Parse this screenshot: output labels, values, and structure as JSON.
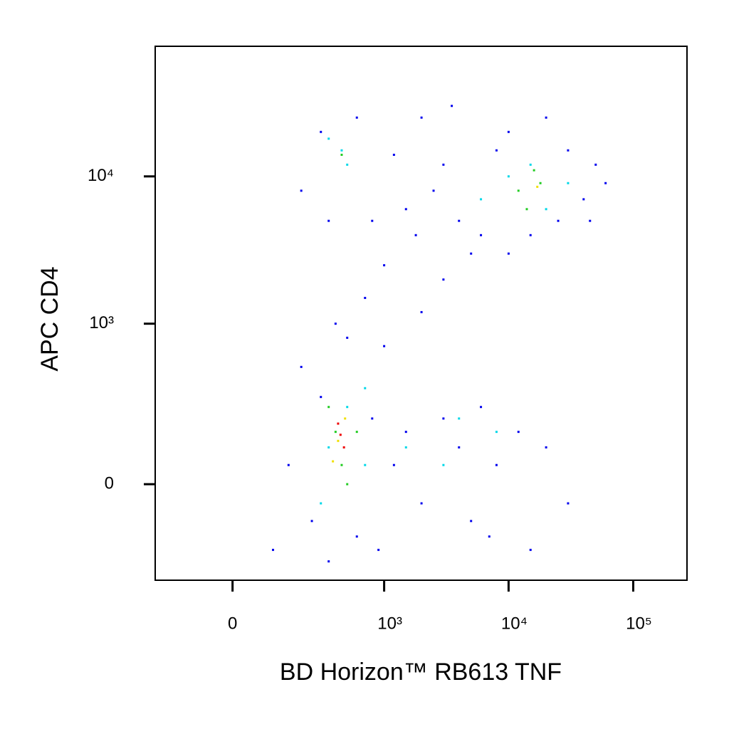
{
  "chart_data": {
    "type": "scatter",
    "xlabel": "BD Horizon™ RB613 TNF",
    "ylabel": "APC CD4",
    "xscale": "biexponential",
    "yscale": "biexponential",
    "xlim": [
      -240,
      270000
    ],
    "ylim": [
      -350,
      76000
    ],
    "xticks": [
      0,
      {
        "value": 1000,
        "label": "10³"
      },
      {
        "value": 10000,
        "label": "10⁴"
      },
      {
        "value": 100000,
        "label": "10⁵"
      }
    ],
    "yticks": [
      0,
      {
        "value": 1000,
        "label": "10³"
      },
      {
        "value": 10000,
        "label": "10⁴"
      }
    ],
    "series": [
      {
        "color": "#0000ee",
        "x": [
          150,
          250,
          300,
          600,
          800,
          1200,
          1500,
          2000,
          3000,
          4000,
          5000,
          6000,
          8000,
          12000,
          20000,
          30000,
          200,
          500,
          700,
          1000,
          2000,
          3000,
          5000,
          800,
          1500,
          2500,
          4000,
          6000,
          10000,
          15000,
          25000,
          40000,
          50000,
          30000,
          8000,
          3000,
          1200,
          300,
          200,
          600,
          2000,
          10000,
          45000,
          100,
          350,
          900,
          7000,
          15000,
          400,
          1000,
          60000,
          20000,
          350,
          3500,
          1800
        ],
        "values": [
          50,
          -100,
          300,
          -150,
          200,
          50,
          150,
          -50,
          200,
          100,
          -100,
          250,
          50,
          150,
          100,
          -50,
          500,
          800,
          1500,
          2500,
          1200,
          2000,
          3000,
          5000,
          6000,
          8000,
          5000,
          4000,
          3000,
          4000,
          5000,
          7000,
          12000,
          15000,
          15000,
          12000,
          14000,
          20000,
          8000,
          25000,
          25000,
          20000,
          5000,
          -200,
          -250,
          -200,
          -150,
          -200,
          1000,
          700,
          9000,
          25000,
          5000,
          30000,
          4000
        ]
      },
      {
        "color": "#00d8e8",
        "x": [
          350,
          500,
          300,
          700,
          1500,
          4000,
          8000,
          3000,
          450,
          500,
          350,
          10000,
          20000,
          30000,
          15000,
          6000,
          700
        ],
        "values": [
          100,
          250,
          -50,
          50,
          100,
          200,
          150,
          50,
          15000,
          12000,
          18000,
          10000,
          6000,
          9000,
          12000,
          7000,
          350
        ]
      },
      {
        "color": "#22cc22",
        "x": [
          400,
          450,
          350,
          500,
          600,
          12000,
          18000,
          14000,
          16000,
          450
        ],
        "values": [
          150,
          50,
          250,
          0,
          150,
          8000,
          9000,
          6000,
          11000,
          14000
        ]
      },
      {
        "color": "#f0e000",
        "x": [
          420,
          480,
          380,
          17000
        ],
        "values": [
          120,
          200,
          60,
          8500
        ]
      },
      {
        "color": "#ee0000",
        "x": [
          440,
          470,
          420
        ],
        "values": [
          140,
          100,
          180
        ]
      }
    ]
  }
}
